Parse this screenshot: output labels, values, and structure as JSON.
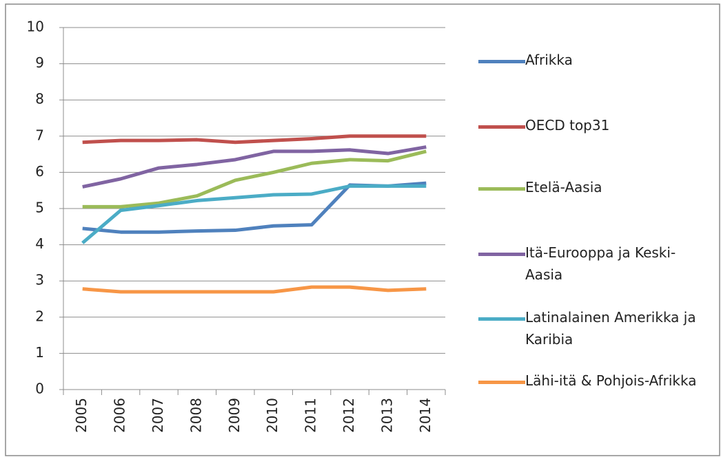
{
  "chart_data": {
    "type": "line",
    "categories": [
      "2005",
      "2006",
      "2007",
      "2008",
      "2009",
      "2010",
      "2011",
      "2012",
      "2013",
      "2014"
    ],
    "series": [
      {
        "name": "Afrikka",
        "color": "#4f81bd",
        "values": [
          4.45,
          4.35,
          4.35,
          4.38,
          4.4,
          4.52,
          4.55,
          5.65,
          5.62,
          5.7
        ]
      },
      {
        "name": "OECD top31",
        "color": "#c0504d",
        "values": [
          6.83,
          6.88,
          6.88,
          6.9,
          6.83,
          6.88,
          6.93,
          7.0,
          7.0,
          7.0
        ]
      },
      {
        "name": "Etelä-Aasia",
        "color": "#9bbb59",
        "values": [
          5.05,
          5.05,
          5.15,
          5.35,
          5.78,
          6.0,
          6.25,
          6.35,
          6.32,
          6.58
        ]
      },
      {
        "name": "Itä-Eurooppa ja Keski-Aasia",
        "color": "#8064a2",
        "values": [
          5.6,
          5.82,
          6.12,
          6.22,
          6.35,
          6.58,
          6.58,
          6.62,
          6.52,
          6.7
        ]
      },
      {
        "name": "Latinalainen Amerikka ja Karibia",
        "color": "#4bacc6",
        "values": [
          4.05,
          4.95,
          5.08,
          5.22,
          5.3,
          5.38,
          5.4,
          5.62,
          5.62,
          5.62
        ]
      },
      {
        "name": "Lähi-itä & Pohjois-Afrikka",
        "color": "#f79646",
        "values": [
          2.78,
          2.7,
          2.7,
          2.7,
          2.7,
          2.7,
          2.83,
          2.83,
          2.74,
          2.78
        ]
      }
    ],
    "ylim": [
      0,
      10
    ],
    "yticks": [
      0,
      1,
      2,
      3,
      4,
      5,
      6,
      7,
      8,
      9,
      10
    ],
    "grid": true,
    "legend": "right"
  }
}
